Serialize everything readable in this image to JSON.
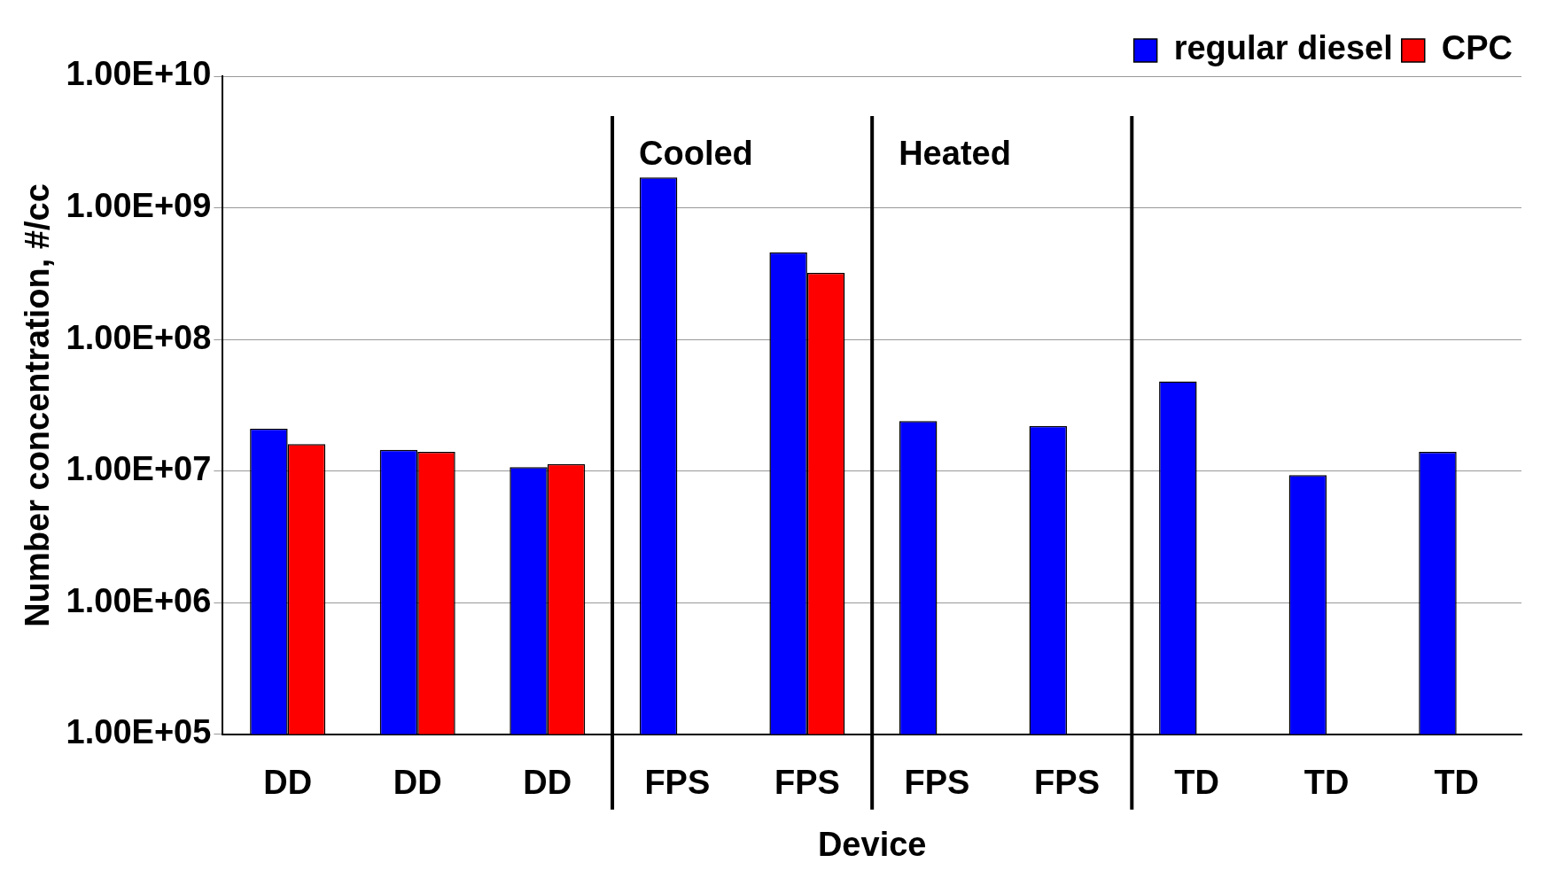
{
  "chart_data": {
    "type": "bar",
    "xlabel": "Device",
    "ylabel": "Number concentration, #/cc",
    "categories": [
      "DD",
      "DD",
      "DD",
      "FPS",
      "FPS",
      "FPS",
      "FPS",
      "TD",
      "TD",
      "TD"
    ],
    "series": [
      {
        "name": "regular diesel",
        "color": "#0000ff",
        "values": [
          21000000.0,
          14500000.0,
          10700000.0,
          1700000000.0,
          460000000.0,
          24000000.0,
          22000000.0,
          48000000.0,
          9300000.0,
          14000000.0
        ]
      },
      {
        "name": "CPC",
        "color": "#ff0000",
        "values": [
          16000000.0,
          14000000.0,
          11300000.0,
          null,
          320000000.0,
          null,
          null,
          null,
          null,
          null
        ]
      }
    ],
    "log": "y",
    "ylim": [
      100000,
      10000000000
    ],
    "yticks": [
      {
        "value": 100000,
        "label": "1.00E+05"
      },
      {
        "value": 1000000,
        "label": "1.00E+06"
      },
      {
        "value": 10000000,
        "label": "1.00E+07"
      },
      {
        "value": 100000000,
        "label": "1.00E+08"
      },
      {
        "value": 1000000000,
        "label": "1.00E+09"
      },
      {
        "value": 10000000000,
        "label": "1.00E+10"
      }
    ],
    "grid": "y",
    "legend": "top right",
    "annotations": [
      "Cooled",
      "Heated"
    ]
  }
}
